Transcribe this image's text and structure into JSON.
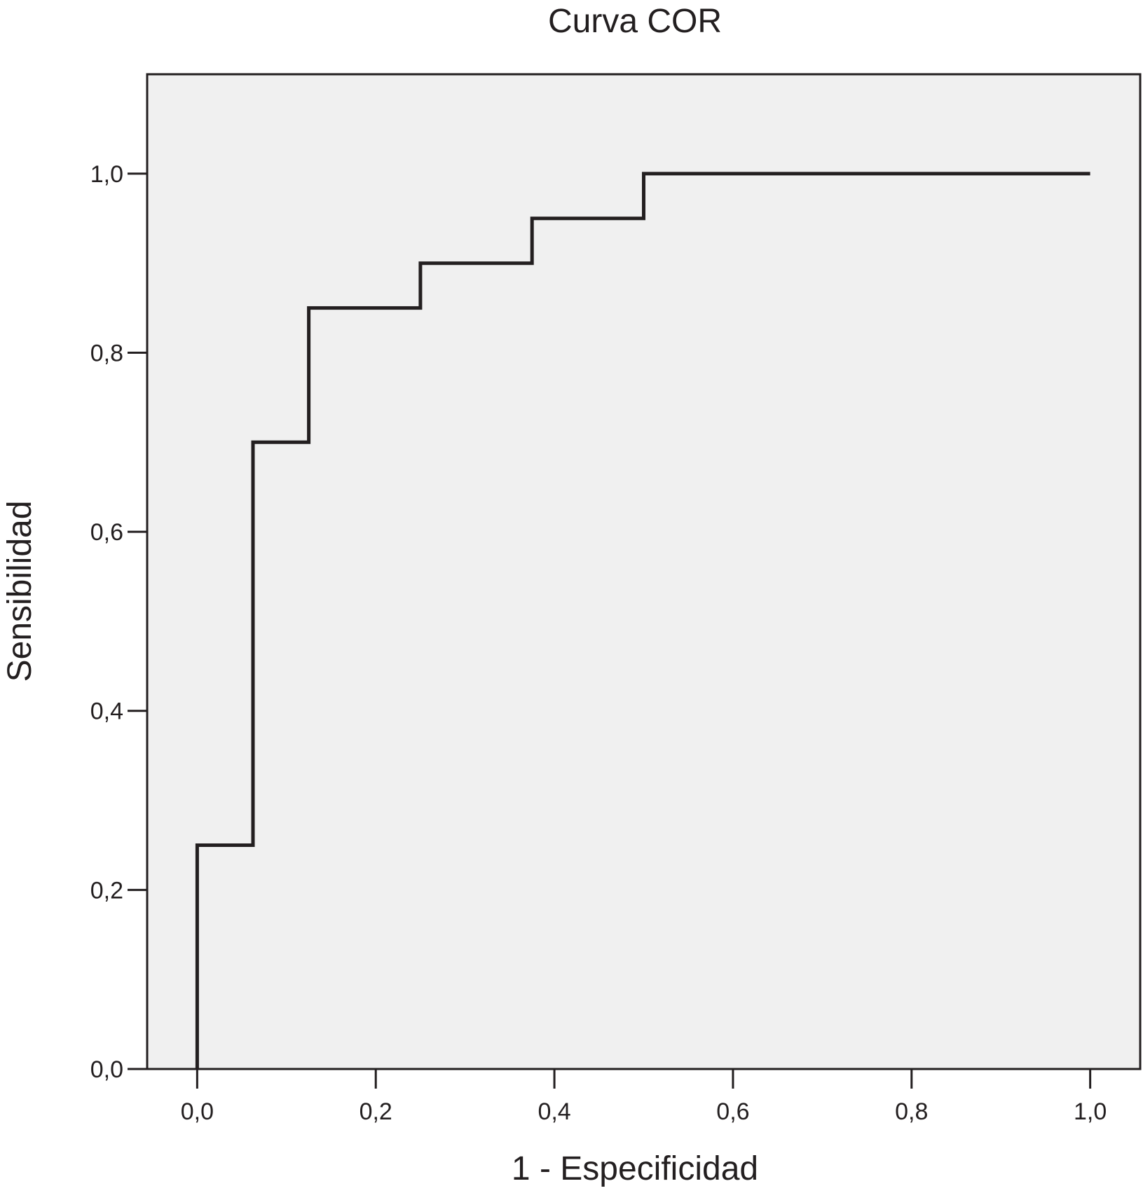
{
  "chart_data": {
    "type": "line",
    "title": "Curva COR",
    "xlabel": "1 - Especificidad",
    "ylabel": "Sensibilidad",
    "xlim": [
      -0.056,
      1.056
    ],
    "ylim": [
      0.0,
      1.111
    ],
    "xticks": [
      0.0,
      0.2,
      0.4,
      0.6,
      0.8,
      1.0
    ],
    "yticks": [
      0.0,
      0.2,
      0.4,
      0.6,
      0.8,
      1.0
    ],
    "xtick_labels": [
      "0,0",
      "0,2",
      "0,4",
      "0,6",
      "0,8",
      "1,0"
    ],
    "ytick_labels": [
      "0,0",
      "0,2",
      "0,4",
      "0,6",
      "0,8",
      "1,0"
    ],
    "grid": false,
    "plot_background": "#f0f0f0",
    "line_color": "#231f20",
    "series": [
      {
        "step": true,
        "x": [
          0.0,
          0.0,
          0.0625,
          0.0625,
          0.125,
          0.125,
          0.25,
          0.25,
          0.375,
          0.375,
          0.5,
          0.5,
          1.0
        ],
        "y": [
          0.0,
          0.25,
          0.25,
          0.7,
          0.7,
          0.85,
          0.85,
          0.9,
          0.9,
          0.95,
          0.95,
          1.0,
          1.0
        ]
      }
    ]
  }
}
